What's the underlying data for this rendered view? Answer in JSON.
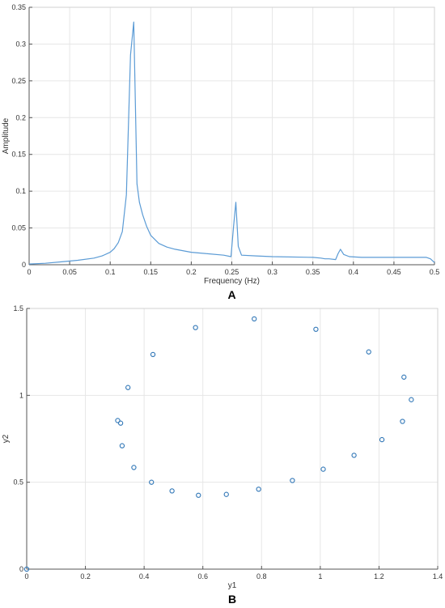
{
  "chart_data": [
    {
      "type": "line",
      "panel_label": "A",
      "xlabel": "Frequency (Hz)",
      "ylabel": "Amplitude",
      "xlim": [
        0,
        0.5
      ],
      "ylim": [
        0,
        0.35
      ],
      "xticks": [
        "0",
        "0.05",
        "0.1",
        "0.15",
        "0.2",
        "0.25",
        "0.3",
        "0.35",
        "0.4",
        "0.45",
        "0.5"
      ],
      "yticks": [
        "0",
        "0.05",
        "0.1",
        "0.15",
        "0.2",
        "0.25",
        "0.3",
        "0.35"
      ],
      "grid": true,
      "line_color": "#5b9bd5",
      "series": [
        {
          "x": [
            0,
            0.02,
            0.04,
            0.06,
            0.08,
            0.09,
            0.1,
            0.105,
            0.11,
            0.115,
            0.12,
            0.125,
            0.129,
            0.133,
            0.136,
            0.14,
            0.145,
            0.15,
            0.16,
            0.17,
            0.18,
            0.2,
            0.22,
            0.24,
            0.249,
            0.252,
            0.255,
            0.258,
            0.262,
            0.28,
            0.3,
            0.35,
            0.36,
            0.365,
            0.37,
            0.378,
            0.381,
            0.384,
            0.388,
            0.395,
            0.41,
            0.43,
            0.45,
            0.47,
            0.49,
            0.495,
            0.5
          ],
          "y": [
            0.001,
            0.002,
            0.004,
            0.006,
            0.009,
            0.012,
            0.017,
            0.022,
            0.03,
            0.045,
            0.095,
            0.285,
            0.33,
            0.11,
            0.085,
            0.068,
            0.052,
            0.04,
            0.029,
            0.024,
            0.021,
            0.017,
            0.015,
            0.013,
            0.011,
            0.05,
            0.085,
            0.025,
            0.013,
            0.012,
            0.011,
            0.01,
            0.009,
            0.008,
            0.008,
            0.007,
            0.015,
            0.021,
            0.014,
            0.011,
            0.01,
            0.01,
            0.01,
            0.01,
            0.01,
            0.008,
            0.003
          ]
        }
      ]
    },
    {
      "type": "scatter",
      "panel_label": "B",
      "xlabel": "y1",
      "ylabel": "y2",
      "xlim": [
        0,
        1.4
      ],
      "ylim": [
        0,
        1.5
      ],
      "xticks": [
        "0",
        "0.2",
        "0.4",
        "0.6",
        "0.8",
        "1",
        "1.2",
        "1.4"
      ],
      "yticks": [
        "0",
        "0.5",
        "1",
        "1.5"
      ],
      "grid": true,
      "marker": "circle-open",
      "marker_color": "#2e75b6",
      "series": [
        {
          "x": [
            0.0,
            0.31,
            0.32,
            0.325,
            0.345,
            0.365,
            0.425,
            0.43,
            0.495,
            0.575,
            0.585,
            0.68,
            0.775,
            0.79,
            0.905,
            0.985,
            1.01,
            1.115,
            1.165,
            1.21,
            1.28,
            1.285,
            1.31
          ],
          "y": [
            0.0,
            0.855,
            0.84,
            0.71,
            1.045,
            0.585,
            0.5,
            1.235,
            0.45,
            1.39,
            0.425,
            0.43,
            1.44,
            0.46,
            0.51,
            1.38,
            0.575,
            0.655,
            1.25,
            0.745,
            0.85,
            1.105,
            0.975
          ]
        }
      ]
    }
  ]
}
